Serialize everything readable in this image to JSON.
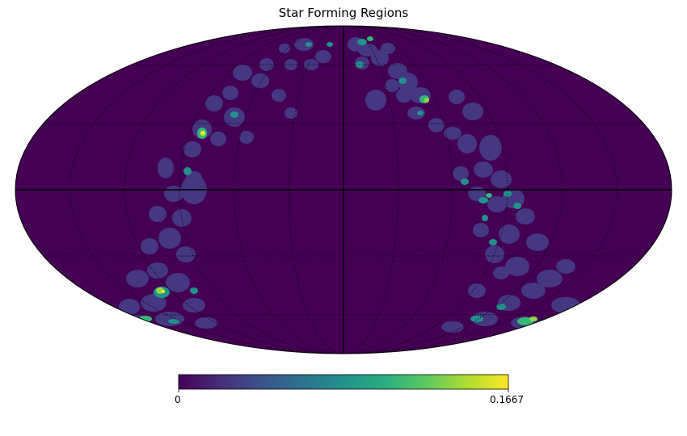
{
  "title": "Star Forming Regions",
  "projection": "mollweide",
  "colormap": "viridis",
  "colors": {
    "background": "#440154",
    "low": "#453781",
    "mid": "#33638d",
    "teal": "#21918c",
    "green": "#35b779",
    "lime": "#90d743",
    "yellow": "#fde725",
    "graticule": "#000000"
  },
  "colorbar": {
    "min_label": "0",
    "max_label": "0.1667",
    "min": 0,
    "max": 0.1667
  },
  "graticule": {
    "longitude_step_deg": 30,
    "latitude_step_deg": 30
  }
}
